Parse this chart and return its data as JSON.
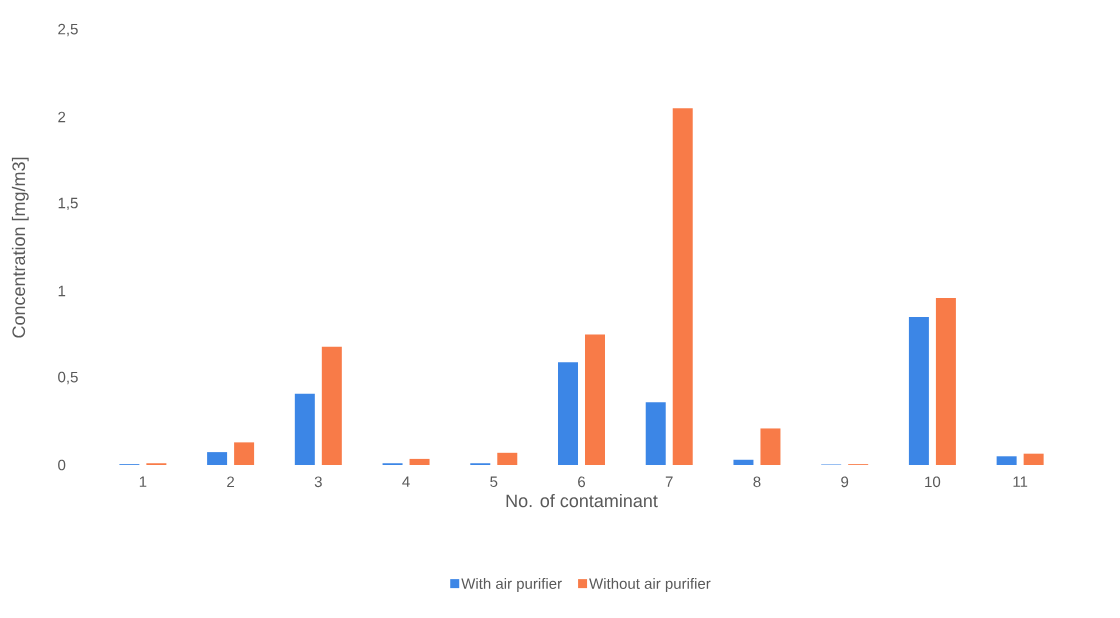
{
  "chart_data": {
    "type": "bar",
    "xlabel": "No. of contaminant",
    "ylabel": "Concentration [mg/m3]",
    "categories": [
      "1",
      "2",
      "3",
      "4",
      "5",
      "6",
      "7",
      "8",
      "9",
      "10",
      "11"
    ],
    "series": [
      {
        "name": "With air purifier",
        "color": "#3c86e6",
        "values": [
          0.005,
          0.074,
          0.41,
          0.01,
          0.01,
          0.59,
          0.36,
          0.03,
          0.003,
          0.85,
          0.05
        ]
      },
      {
        "name": "Without air purifier",
        "color": "#f87b48",
        "values": [
          0.01,
          0.13,
          0.68,
          0.035,
          0.07,
          0.75,
          2.05,
          0.21,
          0.005,
          0.96,
          0.065
        ]
      }
    ],
    "ylim": [
      0,
      2.5
    ],
    "yticks": [
      0,
      {
        "value": 0.5,
        "label": "0,5"
      },
      1,
      {
        "value": 1.5,
        "label": "1,5"
      },
      2,
      {
        "value": 2.5,
        "label": "2,5"
      }
    ],
    "grid": false,
    "legend": "bottom"
  }
}
